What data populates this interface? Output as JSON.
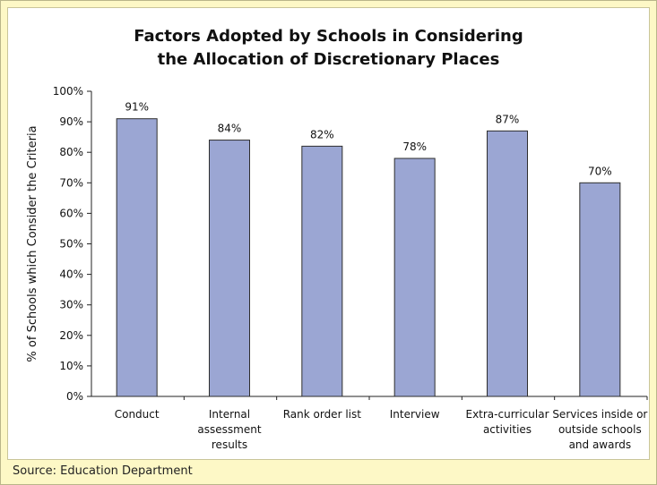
{
  "chart_data": {
    "type": "bar",
    "title_lines": [
      "Factors Adopted by Schools in Considering",
      "the Allocation of Discretionary Places"
    ],
    "ylabel": "% of Schools which Consider the Criteria",
    "xlabel": "",
    "ylim": [
      0,
      100
    ],
    "y_ticks": [
      "0%",
      "10%",
      "20%",
      "30%",
      "40%",
      "50%",
      "60%",
      "70%",
      "80%",
      "90%",
      "100%"
    ],
    "categories": [
      [
        "Conduct"
      ],
      [
        "Internal",
        "assessment",
        "results"
      ],
      [
        "Rank order list"
      ],
      [
        "Interview"
      ],
      [
        "Extra-curricular",
        "activities"
      ],
      [
        "Services inside or",
        "outside schools",
        "and awards"
      ]
    ],
    "values": [
      91,
      84,
      82,
      78,
      87,
      70
    ],
    "value_labels": [
      "91%",
      "84%",
      "82%",
      "78%",
      "87%",
      "70%"
    ],
    "bar_color": "#9ba6d3",
    "grid": false,
    "legend": "none"
  },
  "footer": {
    "source": "Source: Education Department"
  }
}
